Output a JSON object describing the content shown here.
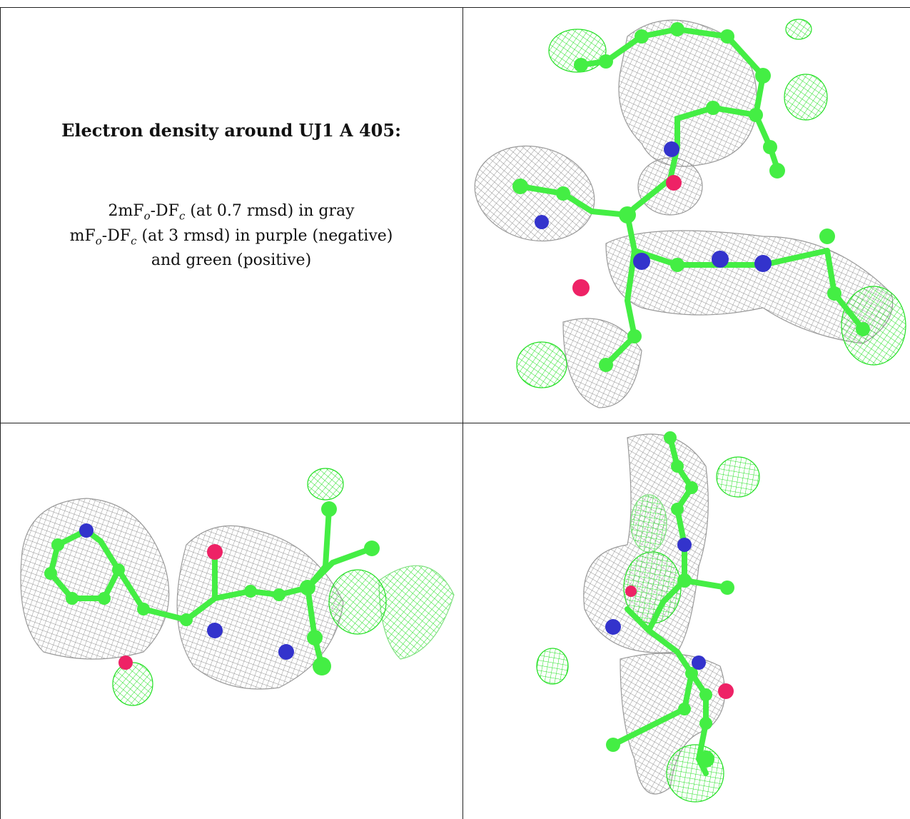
{
  "caption": {
    "title": "Electron density around UJ1 A 405:",
    "line1_prefix": "2mF",
    "line1_sub1": "o",
    "line1_mid": "-DF",
    "line1_sub2": "c",
    "line1_suffix": " (at 0.7 rmsd) in gray",
    "line2_prefix": "mF",
    "line2_sub1": "o",
    "line2_mid": "-DF",
    "line2_sub2": "c",
    "line2_suffix": " (at 3 rmsd) in purple (negative)",
    "line3": "and green (positive)"
  },
  "colors": {
    "mesh_gray": "#9a9a9a",
    "mesh_green": "#22e022",
    "carbon": "#44ee44",
    "nitrogen": "#3333cc",
    "oxygen": "#ee2266",
    "border": "#222222"
  },
  "panels": [
    {
      "name": "view-top-right",
      "icon": "molecule-density-view-1"
    },
    {
      "name": "view-bottom-left",
      "icon": "molecule-density-view-2"
    },
    {
      "name": "view-bottom-right",
      "icon": "molecule-density-view-3"
    }
  ]
}
